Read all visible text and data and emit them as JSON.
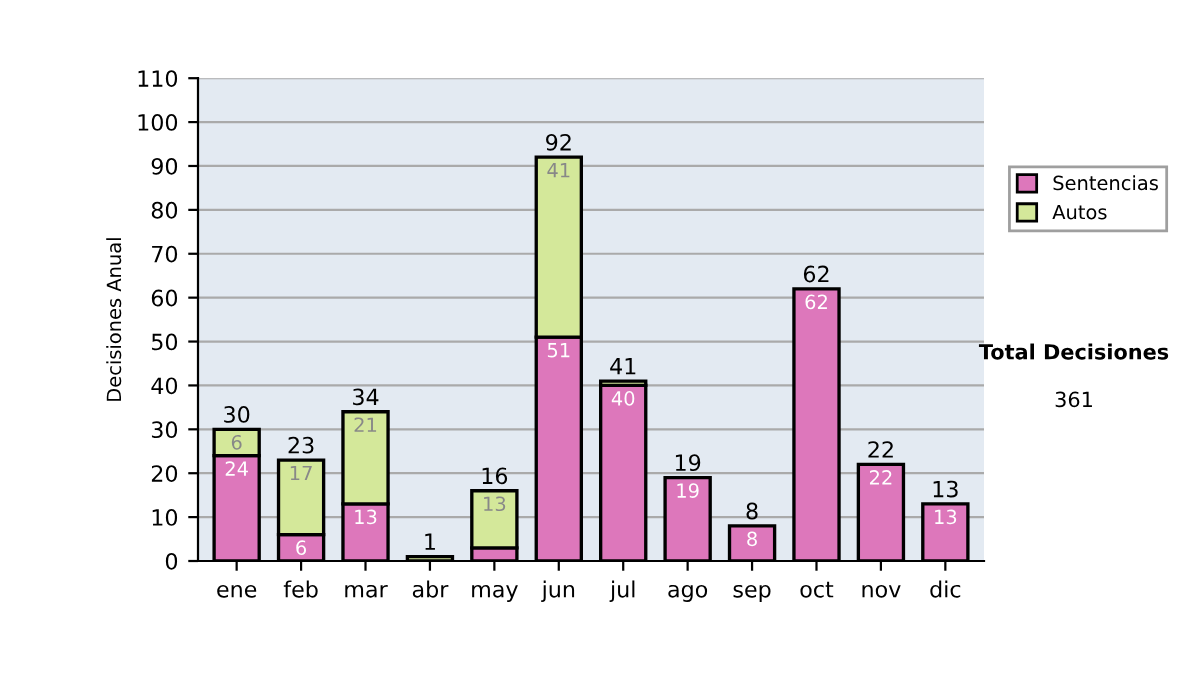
{
  "chart_data": {
    "type": "bar",
    "stacked": true,
    "ylabel": "Decisiones Anual",
    "categories": [
      "ene",
      "feb",
      "mar",
      "abr",
      "may",
      "jun",
      "jul",
      "ago",
      "sep",
      "oct",
      "nov",
      "dic"
    ],
    "series": [
      {
        "name": "Sentencias",
        "color": "#dd77bb",
        "values": [
          24,
          6,
          13,
          null,
          3,
          51,
          40,
          19,
          8,
          62,
          22,
          13
        ],
        "value_labels": [
          "24",
          "6",
          "13",
          null,
          null,
          "51",
          "40",
          "19",
          "8",
          "62",
          "22",
          "13"
        ]
      },
      {
        "name": "Autos",
        "color": "#d4e89a",
        "values": [
          6,
          17,
          21,
          1,
          13,
          41,
          1,
          null,
          null,
          null,
          null,
          null
        ],
        "value_labels": [
          "6",
          "17",
          "21",
          null,
          "13",
          "41",
          null,
          null,
          null,
          null,
          null,
          null
        ]
      }
    ],
    "totals": [
      "30",
      "23",
      "34",
      "1",
      "16",
      "92",
      "41",
      "19",
      "8",
      "62",
      "22",
      "13"
    ],
    "ylim": [
      0,
      110
    ],
    "yticks": [
      0,
      10,
      20,
      30,
      40,
      50,
      60,
      70,
      80,
      90,
      100,
      110
    ],
    "grid": "y",
    "legend": "right",
    "annotations": [
      "Total Decisiones",
      "361"
    ]
  }
}
